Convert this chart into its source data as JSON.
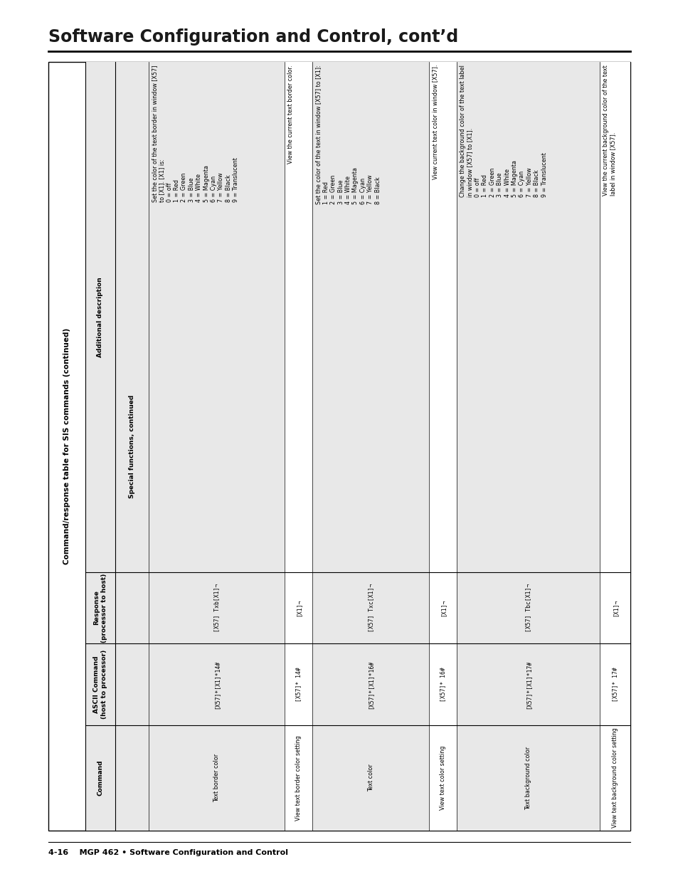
{
  "page_title": "Software Configuration and Control, cont’d",
  "page_footer": "4-16    MGP 462 • Software Configuration and Control",
  "table_title": "Command/response table for SIS commands (continued)",
  "col_headers": [
    "Command",
    "ASCII Command\n(host to processor)",
    "Response\n(processor to host)",
    "Additional description"
  ],
  "bg_color": "#ffffff",
  "shaded_color": "#e8e8e8",
  "box_char": "X",
  "rows": [
    {
      "command": "Special functions, continued",
      "ascii": "",
      "response": "",
      "description": "",
      "is_section": true,
      "shaded": true
    },
    {
      "command": "Text border color",
      "ascii": "[X57]* [X1]* 14#",
      "response": "[X57] Txb[X1] ¬",
      "description": "Set the color of the text border in window [X57]\nto [X1]. [X1] is:\n0 = off\n1 = Red\n2 = Green\n3 = Blue\n4 = White\n5 = Magenta\n6 = Cyan\n7 = Yellow\n8 = Black\n9 = Translucent",
      "is_section": false,
      "shaded": true
    },
    {
      "command": "View text border color setting",
      "ascii": "[X57]* 14#",
      "response": "[X1] ¬",
      "description": "View the current text border color.",
      "is_section": false,
      "shaded": false
    },
    {
      "command": "Text color",
      "ascii": "[X57]* [X1]* 16#",
      "response": "[X57] Txc[X1] ¬",
      "description": "Set the color of the text in window [X57] to [X1]:\n1 = Red\n2 = Green\n3 = Blue\n4 = White\n5 = Magenta\n6 = Cyan\n7 = Yellow\n8 = Black",
      "is_section": false,
      "shaded": true
    },
    {
      "command": "View text color setting",
      "ascii": "[X57]* 16#",
      "response": "[X1] ¬",
      "description": "View current text color in window [X57].",
      "is_section": false,
      "shaded": false
    },
    {
      "command": "Text background color",
      "ascii": "[X57]* [X1]* 17#",
      "response": "[X57] Tbc[X1] ¬",
      "description": "Change the background color of the text label\nin window [X57] to [X1].\n0 = off\n1 = Red\n2 = Green\n3 = Blue\n4 = White\n5 = Magenta\n6 = Cyan\n7 = Yellow\n8 = Black\n9 = Translucent",
      "is_section": false,
      "shaded": true
    },
    {
      "command": "View text background color setting",
      "ascii": "[X57]* 17#",
      "response": "[X1] ¬",
      "description": "View the current background color of the text\nlabel in window [X57].",
      "is_section": false,
      "shaded": false
    }
  ]
}
